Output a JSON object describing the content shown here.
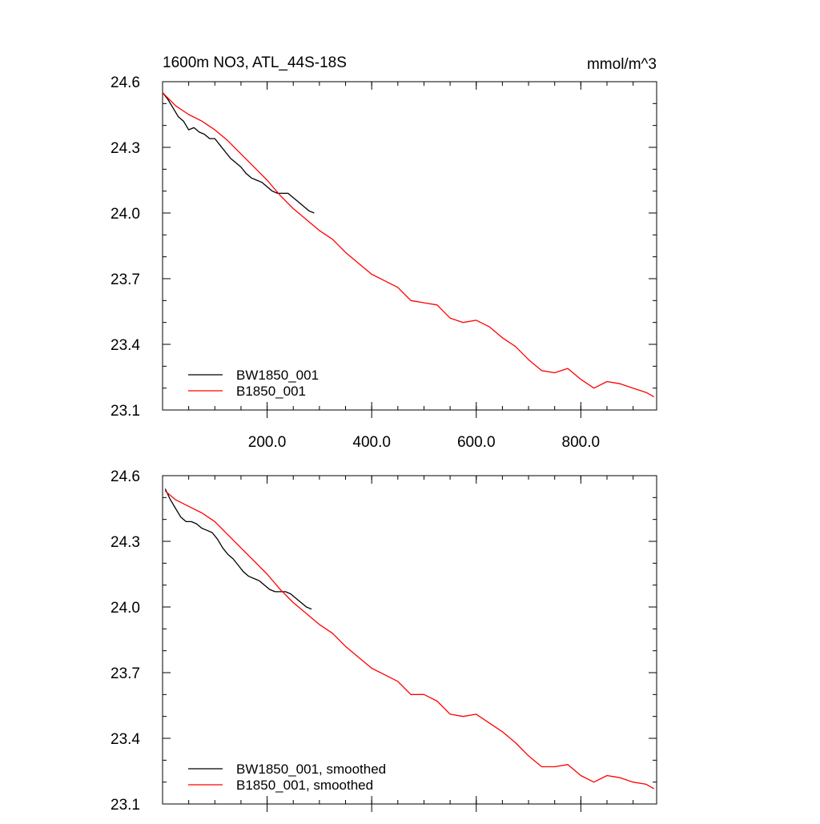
{
  "figure": {
    "title_left": "1600m NO3, ATL_44S-18S",
    "title_right": "mmol/m^3"
  },
  "chart_data": [
    {
      "type": "line",
      "panel": "top",
      "xlim": [
        0,
        945
      ],
      "ylim": [
        23.1,
        24.6
      ],
      "x_ticks": [
        200,
        400,
        600,
        800
      ],
      "x_tick_labels": [
        "200.0",
        "400.0",
        "600.0",
        "800.0"
      ],
      "y_ticks": [
        23.1,
        23.4,
        23.7,
        24.0,
        24.3,
        24.6
      ],
      "y_tick_labels": [
        "23.1",
        "23.4",
        "23.7",
        "24.0",
        "24.3",
        "24.6"
      ],
      "legend_location": "bottom-left",
      "grid": false,
      "series": [
        {
          "name": "BW1850_001",
          "color": "#000000",
          "x": [
            0,
            10,
            20,
            30,
            40,
            50,
            60,
            70,
            80,
            90,
            100,
            110,
            120,
            130,
            140,
            150,
            160,
            170,
            180,
            190,
            200,
            210,
            220,
            230,
            240,
            250,
            260,
            270,
            280,
            290
          ],
          "y": [
            24.55,
            24.52,
            24.48,
            24.44,
            24.42,
            24.38,
            24.39,
            24.37,
            24.36,
            24.34,
            24.34,
            24.31,
            24.28,
            24.25,
            24.23,
            24.21,
            24.18,
            24.16,
            24.15,
            24.14,
            24.12,
            24.1,
            24.09,
            24.09,
            24.09,
            24.07,
            24.05,
            24.03,
            24.01,
            24.0
          ]
        },
        {
          "name": "B1850_001",
          "color": "#ff0000",
          "x": [
            0,
            25,
            50,
            75,
            100,
            125,
            150,
            175,
            200,
            225,
            250,
            275,
            300,
            325,
            350,
            375,
            400,
            425,
            450,
            475,
            500,
            525,
            550,
            575,
            600,
            625,
            650,
            675,
            700,
            725,
            750,
            775,
            800,
            825,
            850,
            875,
            900,
            925,
            940
          ],
          "y": [
            24.55,
            24.49,
            24.45,
            24.42,
            24.38,
            24.33,
            24.27,
            24.21,
            24.15,
            24.08,
            24.02,
            23.97,
            23.92,
            23.88,
            23.82,
            23.77,
            23.72,
            23.69,
            23.66,
            23.6,
            23.59,
            23.58,
            23.52,
            23.5,
            23.51,
            23.48,
            23.43,
            23.39,
            23.33,
            23.28,
            23.27,
            23.29,
            23.24,
            23.2,
            23.23,
            23.22,
            23.2,
            23.18,
            23.16
          ]
        }
      ]
    },
    {
      "type": "line",
      "panel": "bottom",
      "xlim": [
        0,
        945
      ],
      "ylim": [
        23.1,
        24.6
      ],
      "x_ticks": [
        200,
        400,
        600,
        800
      ],
      "y_ticks": [
        23.1,
        23.4,
        23.7,
        24.0,
        24.3,
        24.6
      ],
      "y_tick_labels": [
        "23.1",
        "23.4",
        "23.7",
        "24.0",
        "24.3",
        "24.6"
      ],
      "legend_location": "bottom-left",
      "grid": false,
      "series": [
        {
          "name": "BW1850_001, smoothed",
          "color": "#000000",
          "x": [
            5,
            15,
            25,
            35,
            45,
            55,
            65,
            75,
            85,
            95,
            105,
            115,
            125,
            135,
            145,
            155,
            165,
            175,
            185,
            195,
            205,
            215,
            225,
            235,
            245,
            255,
            265,
            275,
            285
          ],
          "y": [
            24.54,
            24.49,
            24.45,
            24.41,
            24.39,
            24.39,
            24.38,
            24.36,
            24.35,
            24.34,
            24.31,
            24.27,
            24.24,
            24.22,
            24.19,
            24.16,
            24.14,
            24.13,
            24.12,
            24.1,
            24.08,
            24.07,
            24.07,
            24.07,
            24.06,
            24.04,
            24.02,
            24.0,
            23.99
          ]
        },
        {
          "name": "B1850_001, smoothed",
          "color": "#ff0000",
          "x": [
            5,
            25,
            50,
            75,
            100,
            125,
            150,
            175,
            200,
            225,
            250,
            275,
            300,
            325,
            350,
            375,
            400,
            425,
            450,
            475,
            500,
            525,
            550,
            575,
            600,
            625,
            650,
            675,
            700,
            725,
            750,
            775,
            800,
            825,
            850,
            875,
            900,
            925,
            940
          ],
          "y": [
            24.53,
            24.49,
            24.46,
            24.43,
            24.39,
            24.33,
            24.27,
            24.21,
            24.15,
            24.08,
            24.02,
            23.97,
            23.92,
            23.88,
            23.82,
            23.77,
            23.72,
            23.69,
            23.66,
            23.6,
            23.6,
            23.57,
            23.51,
            23.5,
            23.51,
            23.47,
            23.43,
            23.38,
            23.32,
            23.27,
            23.27,
            23.28,
            23.23,
            23.2,
            23.23,
            23.22,
            23.2,
            23.19,
            23.17
          ]
        }
      ]
    }
  ]
}
